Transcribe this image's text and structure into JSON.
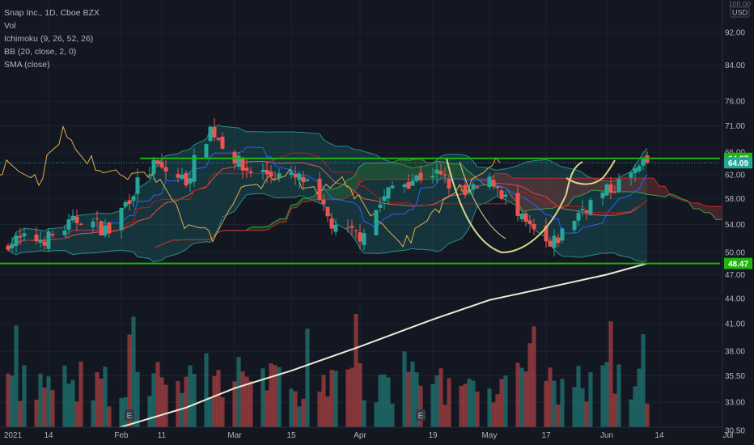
{
  "legend": {
    "symbol": "Snap Inc., 1D, Cboe BZX",
    "indicators": [
      "Vol",
      "Ichimoku (9, 26, 52, 26)",
      "BB (20, close, 2, 0)",
      "SMA (close)"
    ]
  },
  "price_axis": {
    "currency": "USD",
    "top_label": "100.00",
    "ticks": [
      "92.00",
      "84.00",
      "76.00",
      "71.00",
      "66.00",
      "62.00",
      "58.00",
      "54.00",
      "50.00",
      "47.00",
      "44.00",
      "41.00",
      "38.00",
      "35.50",
      "33.00",
      "30.50"
    ]
  },
  "time_axis": {
    "labels": [
      "2021",
      "14",
      "Feb",
      "11",
      "Mar",
      "15",
      "Apr",
      "19",
      "May",
      "17",
      "Jun",
      "14",
      "Jul"
    ]
  },
  "markers": {
    "earnings_label": "E"
  },
  "colors": {
    "background": "#131722",
    "up": "#26a69a",
    "down": "#ef5350",
    "horizontal_line": "#1fb40e",
    "sma": "#f0ead6",
    "bb_fill": "#1c6b6b",
    "lagging": "#e0b04e"
  },
  "chart_data": {
    "type": "candlestick",
    "title": "Snap Inc., 1D, Cboe BZX",
    "log_scale": true,
    "ylim": [
      30.5,
      100
    ],
    "horizontal_lines": [
      {
        "price": 64.87,
        "label": "64.87"
      },
      {
        "price": 48.47,
        "label": "48.47"
      }
    ],
    "last_price": {
      "price": 64.09,
      "label": "64.09"
    },
    "dates_start": "2021-01-04",
    "dates_end": "2021-06-11",
    "close_path": [
      {
        "date": "2021-01-04",
        "close": 51.5
      },
      {
        "date": "2021-01-14",
        "close": 52.0
      },
      {
        "date": "2021-01-22",
        "close": 55.0
      },
      {
        "date": "2021-01-29",
        "close": 53.0
      },
      {
        "date": "2021-02-05",
        "close": 60.5
      },
      {
        "date": "2021-02-09",
        "close": 63.5
      },
      {
        "date": "2021-02-17",
        "close": 61.0
      },
      {
        "date": "2021-02-23",
        "close": 70.5
      },
      {
        "date": "2021-03-03",
        "close": 63.0
      },
      {
        "date": "2021-03-11",
        "close": 62.0
      },
      {
        "date": "2021-03-18",
        "close": 61.0
      },
      {
        "date": "2021-03-26",
        "close": 53.0
      },
      {
        "date": "2021-04-01",
        "close": 52.5
      },
      {
        "date": "2021-04-09",
        "close": 60.0
      },
      {
        "date": "2021-04-19",
        "close": 62.5
      },
      {
        "date": "2021-04-27",
        "close": 58.5
      },
      {
        "date": "2021-05-04",
        "close": 61.0
      },
      {
        "date": "2021-05-10",
        "close": 55.0
      },
      {
        "date": "2021-05-18",
        "close": 50.5
      },
      {
        "date": "2021-05-26",
        "close": 56.5
      },
      {
        "date": "2021-06-03",
        "close": 60.0
      },
      {
        "date": "2021-06-11",
        "close": 64.09
      }
    ],
    "sma": [
      {
        "date": "2021-01-29",
        "value": 30.5
      },
      {
        "date": "2021-02-17",
        "value": 32.5
      },
      {
        "date": "2021-03-01",
        "value": 34.3
      },
      {
        "date": "2021-03-15",
        "value": 36.0
      },
      {
        "date": "2021-04-01",
        "value": 38.5
      },
      {
        "date": "2021-04-19",
        "value": 41.5
      },
      {
        "date": "2021-05-03",
        "value": 43.8
      },
      {
        "date": "2021-05-17",
        "value": 45.3
      },
      {
        "date": "2021-06-01",
        "value": 47.0
      },
      {
        "date": "2021-06-11",
        "value": 48.47
      }
    ]
  }
}
